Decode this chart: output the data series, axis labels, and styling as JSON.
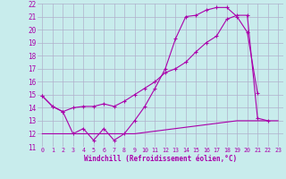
{
  "xlabel": "Windchill (Refroidissement éolien,°C)",
  "background_color": "#c8ecec",
  "grid_color": "#b0b0cc",
  "line_color": "#aa00aa",
  "xlim": [
    -0.5,
    23.5
  ],
  "ylim": [
    11,
    22
  ],
  "xticks": [
    0,
    1,
    2,
    3,
    4,
    5,
    6,
    7,
    8,
    9,
    10,
    11,
    12,
    13,
    14,
    15,
    16,
    17,
    18,
    19,
    20,
    21,
    22,
    23
  ],
  "yticks": [
    11,
    12,
    13,
    14,
    15,
    16,
    17,
    18,
    19,
    20,
    21,
    22
  ],
  "line1_x": [
    0,
    1,
    2,
    3,
    4,
    5,
    6,
    7,
    8,
    9,
    10,
    11,
    12,
    13,
    14,
    15,
    16,
    17,
    18,
    19,
    20,
    21
  ],
  "line1_y": [
    14.9,
    14.1,
    13.7,
    12.0,
    12.4,
    11.5,
    12.4,
    11.5,
    12.0,
    13.0,
    14.1,
    15.5,
    17.0,
    19.3,
    21.0,
    21.1,
    21.5,
    21.7,
    21.7,
    21.0,
    19.8,
    15.1
  ],
  "line2_x": [
    0,
    1,
    2,
    3,
    4,
    5,
    6,
    7,
    8,
    9,
    10,
    11,
    12,
    13,
    14,
    15,
    16,
    17,
    18,
    19,
    20,
    21,
    22
  ],
  "line2_y": [
    14.9,
    14.1,
    13.7,
    14.0,
    14.1,
    14.1,
    14.3,
    14.1,
    14.5,
    15.0,
    15.5,
    16.0,
    16.7,
    17.0,
    17.5,
    18.3,
    19.0,
    19.5,
    20.8,
    21.1,
    21.1,
    13.2,
    13.0
  ],
  "line3_x": [
    0,
    1,
    2,
    3,
    4,
    5,
    6,
    7,
    8,
    9,
    10,
    11,
    12,
    13,
    14,
    15,
    16,
    17,
    18,
    19,
    20,
    21,
    22,
    23
  ],
  "line3_y": [
    12.0,
    12.0,
    12.0,
    12.0,
    12.0,
    12.0,
    12.0,
    12.0,
    12.0,
    12.0,
    12.1,
    12.2,
    12.3,
    12.4,
    12.5,
    12.6,
    12.7,
    12.8,
    12.9,
    13.0,
    13.0,
    13.0,
    13.0,
    13.0
  ]
}
